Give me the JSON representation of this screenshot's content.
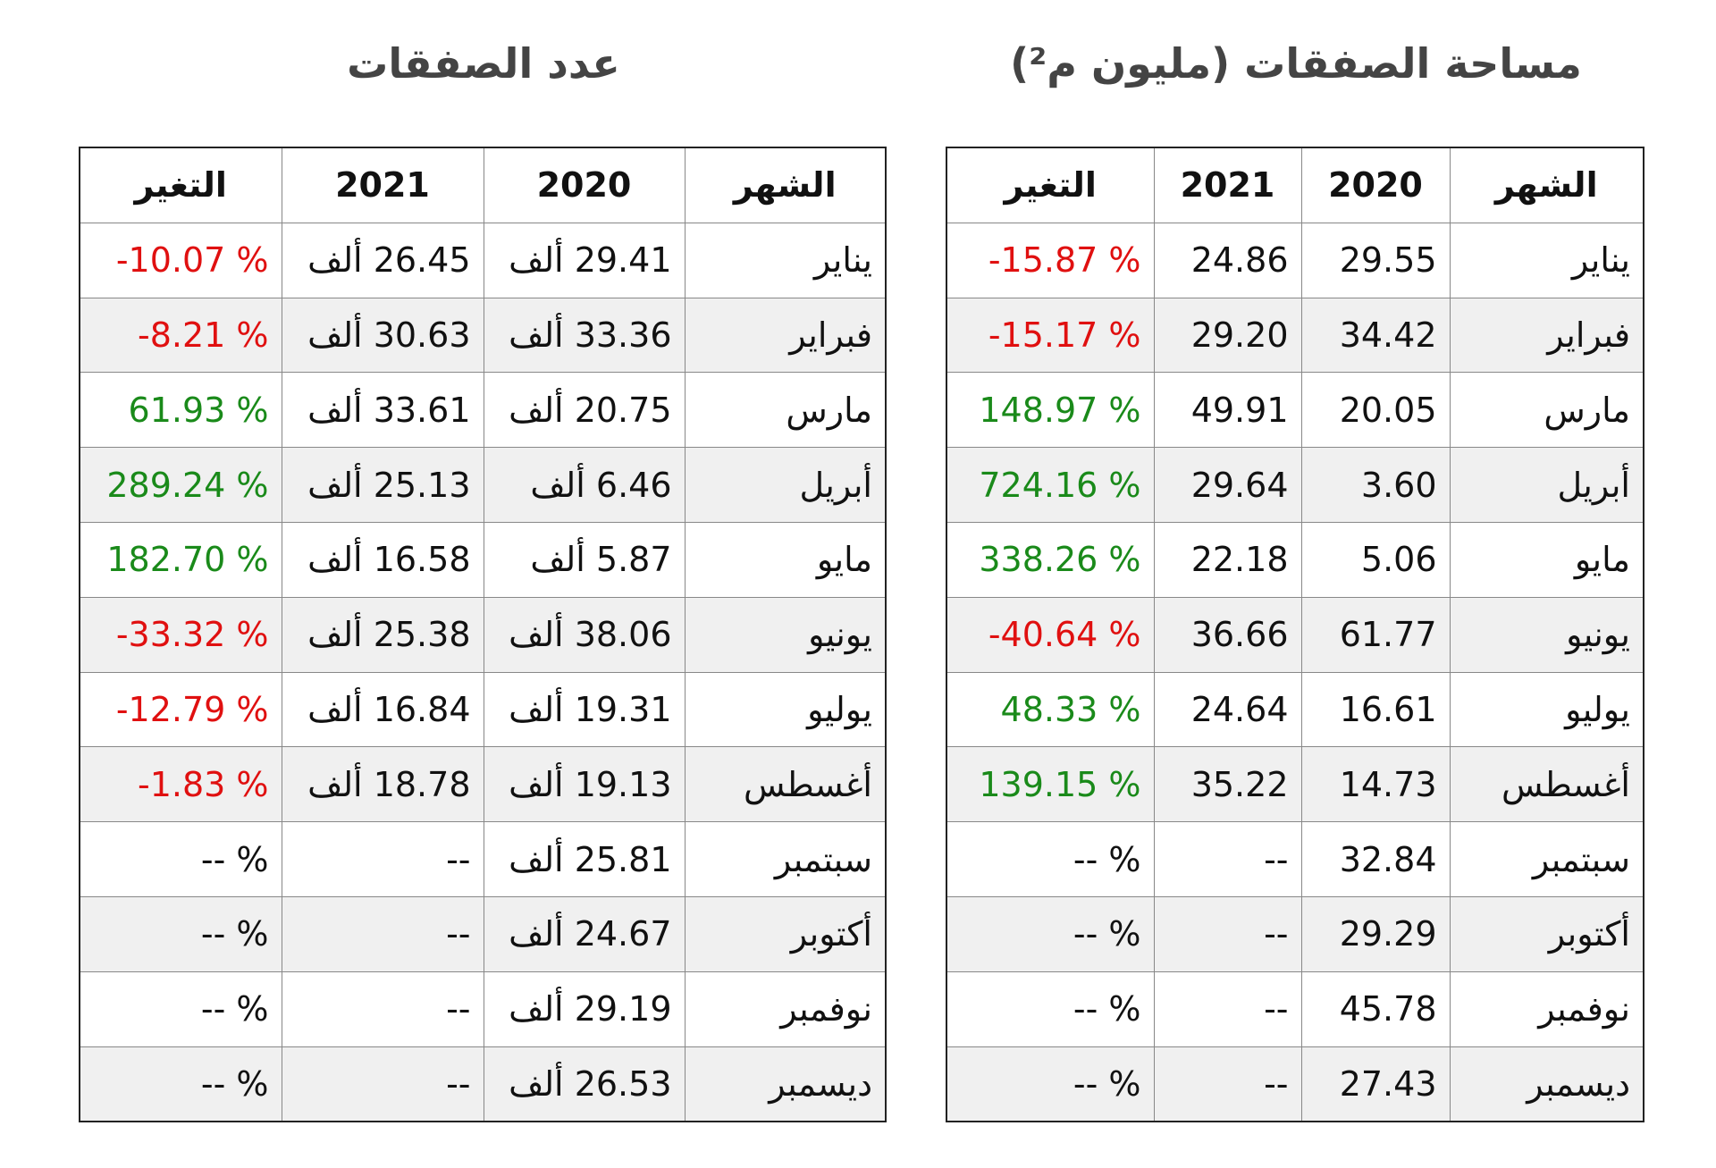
{
  "tables": [
    {
      "title": "مساحة الصفقات (مليون م²)",
      "headers": [
        "الشهر",
        "2020",
        "2021",
        "التغير"
      ],
      "rows": [
        [
          "يناير",
          "29.55",
          "24.86",
          "-15.87 %"
        ],
        [
          "فبراير",
          "34.42",
          "29.20",
          "-15.17 %"
        ],
        [
          "مارس",
          "20.05",
          "49.91",
          "148.97 %"
        ],
        [
          "أبريل",
          "3.60",
          "29.64",
          "724.16 %"
        ],
        [
          "مايو",
          "5.06",
          "22.18",
          "338.26 %"
        ],
        [
          "يونيو",
          "61.77",
          "36.66",
          "-40.64 %"
        ],
        [
          "يوليو",
          "16.61",
          "24.64",
          "48.33 %"
        ],
        [
          "أغسطس",
          "14.73",
          "35.22",
          "139.15 %"
        ],
        [
          "سبتمبر",
          "32.84",
          "--",
          "-- %"
        ],
        [
          "أكتوبر",
          "29.29",
          "--",
          "-- %"
        ],
        [
          "نوفمبر",
          "45.78",
          "--",
          "-- %"
        ],
        [
          "ديسمبر",
          "27.43",
          "--",
          "-- %"
        ]
      ]
    },
    {
      "title": "عدد الصفقات",
      "headers": [
        "الشهر",
        "2020",
        "2021",
        "التغير"
      ],
      "rows": [
        [
          "يناير",
          "29.41 ألف",
          "26.45 ألف",
          "-10.07 %"
        ],
        [
          "فبراير",
          "33.36 ألف",
          "30.63 ألف",
          "-8.21 %"
        ],
        [
          "مارس",
          "20.75 ألف",
          "33.61 ألف",
          "61.93 %"
        ],
        [
          "أبريل",
          "6.46 ألف",
          "25.13 ألف",
          "289.24 %"
        ],
        [
          "مايو",
          "5.87 ألف",
          "16.58 ألف",
          "182.70 %"
        ],
        [
          "يونيو",
          "38.06 ألف",
          "25.38 ألف",
          "-33.32 %"
        ],
        [
          "يوليو",
          "19.31 ألف",
          "16.84 ألف",
          "-12.79 %"
        ],
        [
          "أغسطس",
          "19.13 ألف",
          "18.78 ألف",
          "-1.83 %"
        ],
        [
          "سبتمبر",
          "25.81 ألف",
          "--",
          "-- %"
        ],
        [
          "أكتوبر",
          "24.67 ألف",
          "--",
          "-- %"
        ],
        [
          "نوفمبر",
          "29.19 ألف",
          "--",
          "-- %"
        ],
        [
          "ديسمبر",
          "26.53 ألف",
          "--",
          "-- %"
        ]
      ]
    }
  ]
}
